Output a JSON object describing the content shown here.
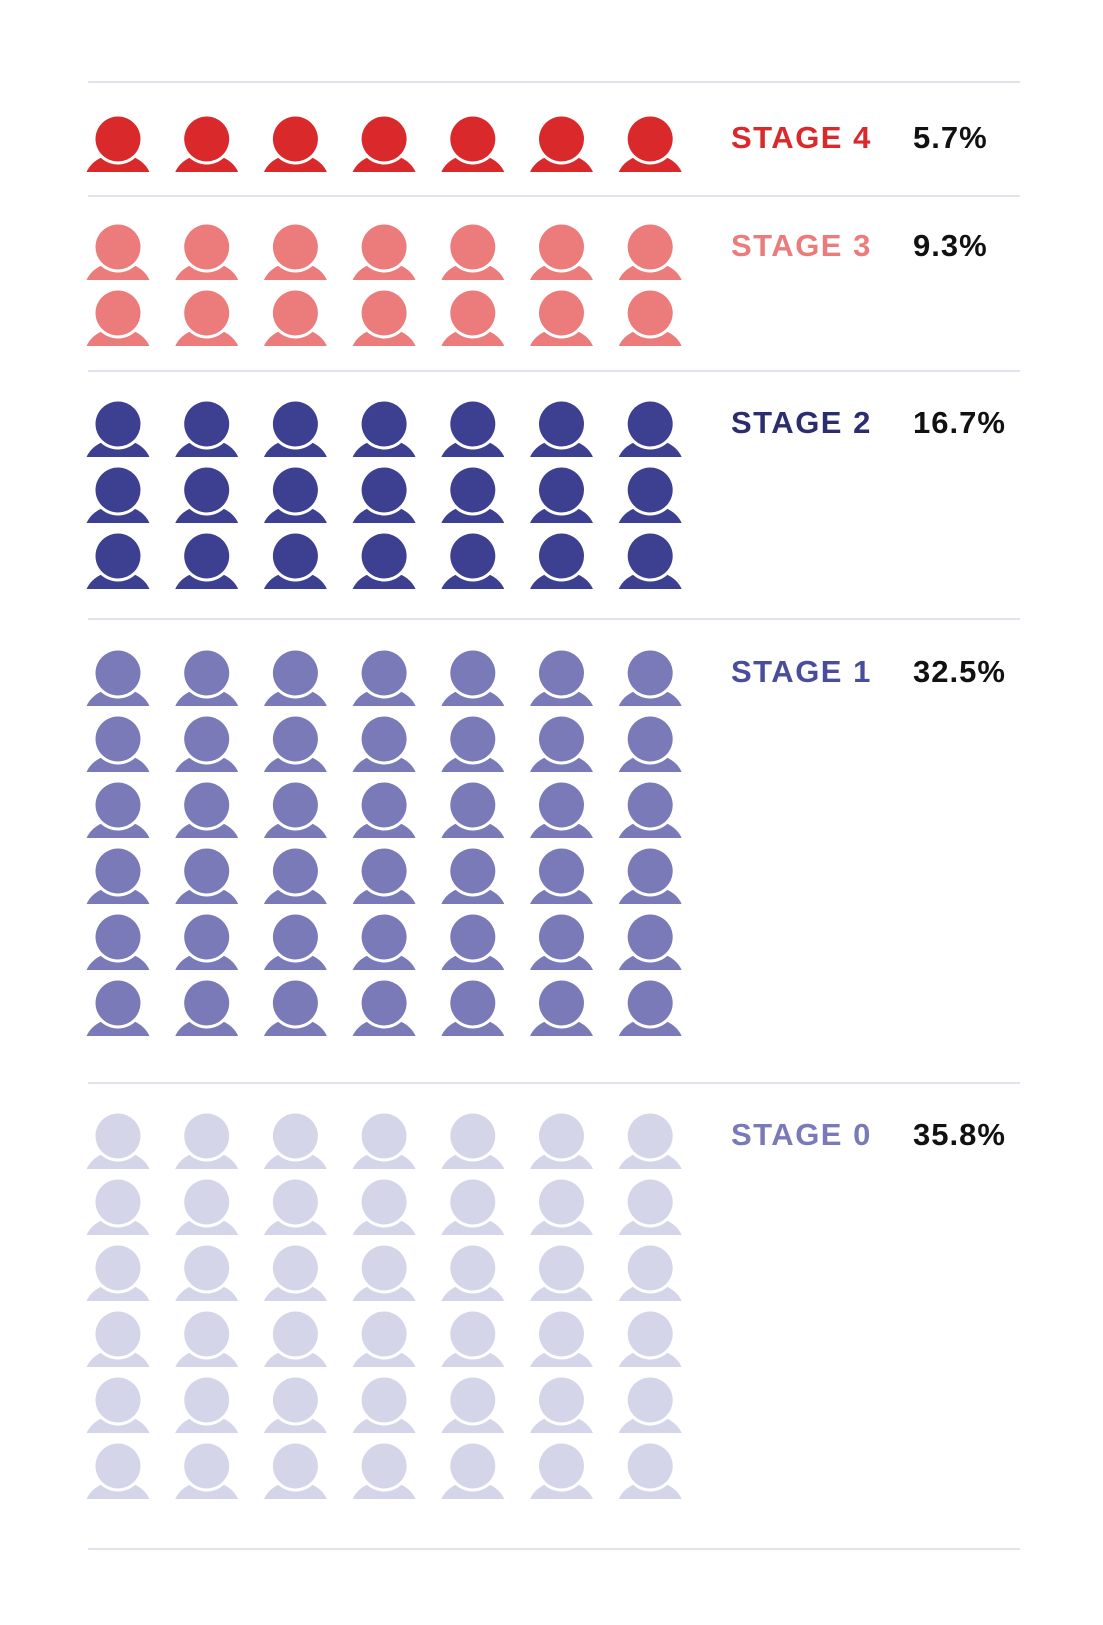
{
  "chart_data": {
    "type": "pictogram",
    "icon": "person-icon",
    "icons_per_row": 7,
    "categories": [
      {
        "label": "STAGE 4",
        "value": "5.7%",
        "percent": 5.7,
        "rows": 1,
        "icon_count": 7,
        "color": "#d9292b"
      },
      {
        "label": "STAGE 3",
        "value": "9.3%",
        "percent": 9.3,
        "rows": 2,
        "icon_count": 14,
        "color": "#ec7b7b"
      },
      {
        "label": "STAGE 2",
        "value": "16.7%",
        "percent": 16.7,
        "rows": 3,
        "icon_count": 21,
        "color": "#3d4090"
      },
      {
        "label": "STAGE 1",
        "value": "32.5%",
        "percent": 32.5,
        "rows": 6,
        "icon_count": 42,
        "color": "#7a7ab8"
      },
      {
        "label": "STAGE 0",
        "value": "35.8%",
        "percent": 35.8,
        "rows": 6,
        "icon_count": 42,
        "color": "#d5d5ea"
      }
    ],
    "label_colors": [
      "#d9292b",
      "#ec7b7b",
      "#2b2d6e",
      "#4a4c9c",
      "#7a7ab8"
    ],
    "divider_color": "#e2e2ee"
  }
}
